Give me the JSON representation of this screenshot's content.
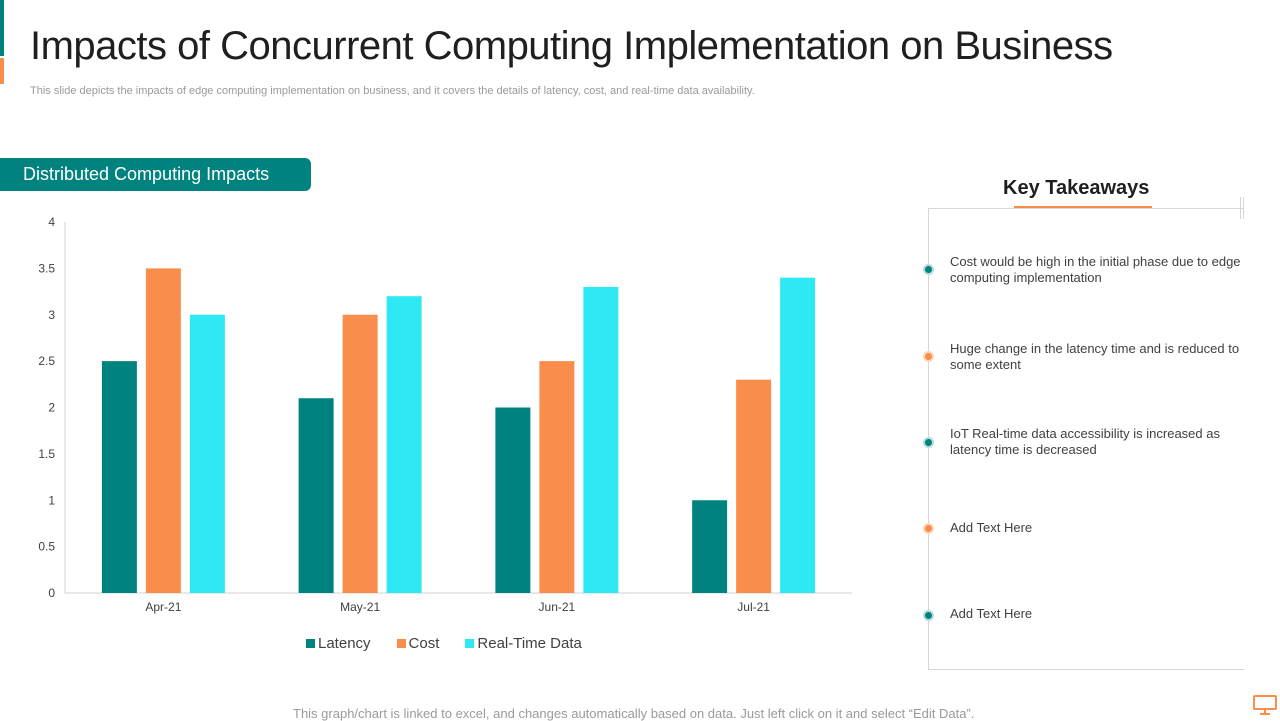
{
  "header": {
    "title": "Impacts of Concurrent Computing Implementation on Business",
    "subtitle": "This slide depicts the impacts of edge computing implementation on business, and it covers the details of latency,  cost, and real-time data availability."
  },
  "chart_section": {
    "label": "Distributed Computing Impacts"
  },
  "chart_data": {
    "type": "bar",
    "title": "",
    "xlabel": "",
    "ylabel": "",
    "categories": [
      "Apr-21",
      "May-21",
      "Jun-21",
      "Jul-21"
    ],
    "series": [
      {
        "name": "Latency",
        "values": [
          2.5,
          2.1,
          2.0,
          1.0
        ],
        "color": "#00827f"
      },
      {
        "name": "Cost",
        "values": [
          3.5,
          3.0,
          2.5,
          2.3
        ],
        "color": "#f98d4b"
      },
      {
        "name": "Real-Time Data",
        "values": [
          3.0,
          3.2,
          3.3,
          3.4
        ],
        "color": "#2ee8f4"
      }
    ],
    "ylim": [
      0,
      4
    ],
    "yticks": [
      "0",
      "0.5",
      "1",
      "1.5",
      "2",
      "2.5",
      "3",
      "3.5",
      "4"
    ],
    "grid": false,
    "legend_position": "bottom"
  },
  "takeaways": {
    "heading": "Key Takeaways",
    "items": [
      {
        "text": "Cost would be high in the initial phase due to edge computing implementation",
        "color": "teal"
      },
      {
        "text": "Huge change in the latency time and is reduced to some extent",
        "color": "orange"
      },
      {
        "text": "IoT Real-time data accessibility is increased as latency time is decreased",
        "color": "teal"
      },
      {
        "text": "Add Text Here",
        "color": "orange"
      },
      {
        "text": "Add Text Here",
        "color": "teal"
      }
    ]
  },
  "footer": {
    "note": "This graph/chart is linked to excel, and changes automatically based on data. Just left click on it and select “Edit Data”.",
    "icon": "monitor-icon"
  }
}
